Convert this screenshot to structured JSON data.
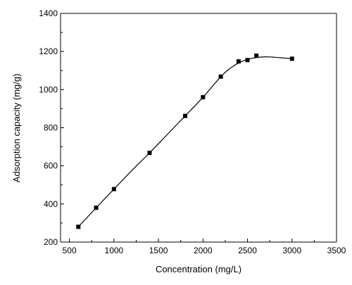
{
  "chart_data": {
    "type": "scatter",
    "title": "",
    "xlabel": "Concentration (mg/L)",
    "ylabel": "Adsorption capacity (mg/g)",
    "xlim": [
      400,
      3500
    ],
    "ylim": [
      200,
      1400
    ],
    "xticks": [
      500,
      1000,
      1500,
      2000,
      2500,
      3000,
      3500
    ],
    "yticks": [
      200,
      400,
      600,
      800,
      1000,
      1200,
      1400
    ],
    "grid": false,
    "legend": "none",
    "marker": "square",
    "series": [
      {
        "x": [
          600,
          800,
          1000,
          1400,
          1800,
          2000,
          2200,
          2400,
          2500,
          2600,
          3000
        ],
        "y": [
          280,
          380,
          478,
          668,
          862,
          960,
          1068,
          1148,
          1155,
          1178,
          1162
        ]
      }
    ],
    "fit_curve": {
      "x": [
        600,
        800,
        1000,
        1200,
        1400,
        1600,
        1800,
        2000,
        2200,
        2300,
        2400,
        2500,
        2600,
        2700,
        2800,
        2900,
        3000
      ],
      "y": [
        280,
        380,
        478,
        575,
        668,
        765,
        862,
        960,
        1068,
        1110,
        1140,
        1158,
        1168,
        1172,
        1170,
        1166,
        1162
      ]
    },
    "colors": {
      "marker": "#000000",
      "line": "#000000"
    }
  }
}
